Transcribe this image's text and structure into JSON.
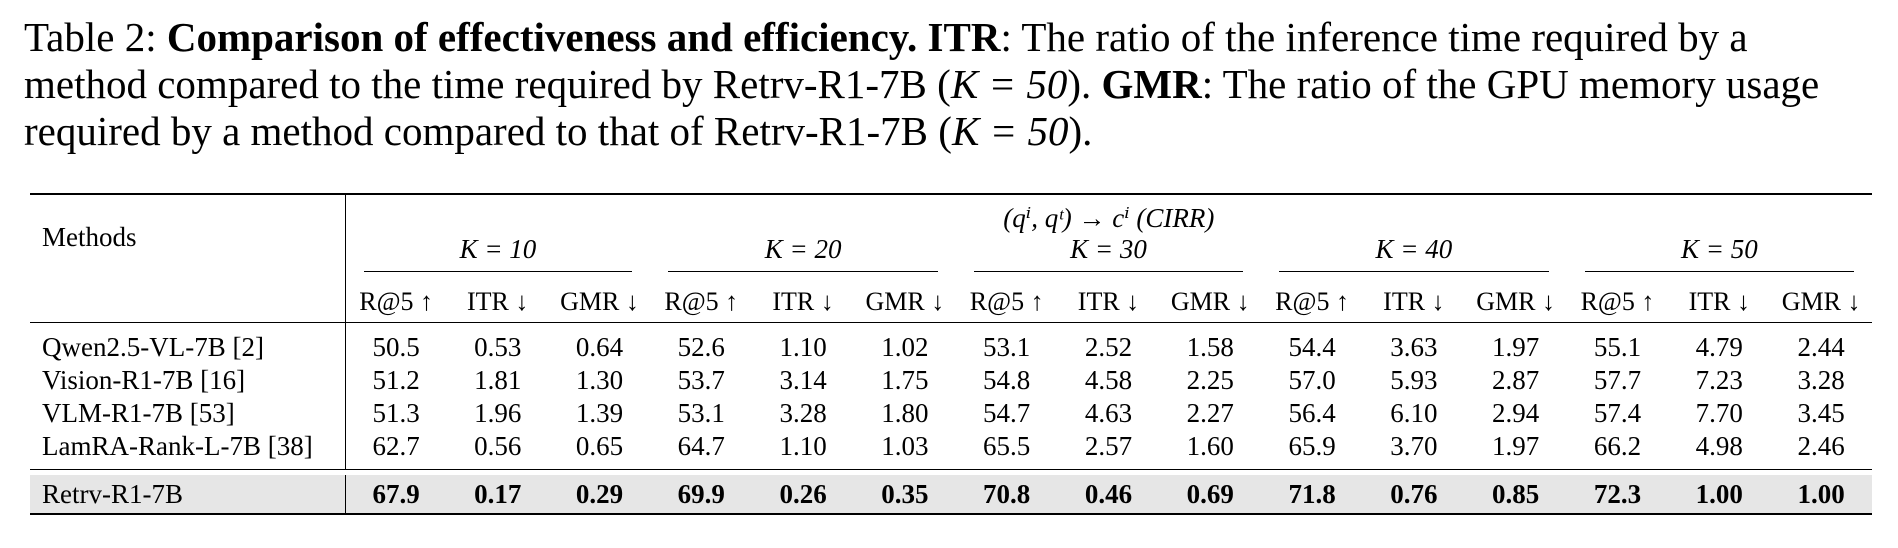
{
  "caption": {
    "label": "Table 2:",
    "title": "Comparison of effectiveness and efficiency.",
    "itr_term": "ITR",
    "itr_text_1": ": The ratio of the inference time required by a method compared to the time required by Retrv-R1-7B (",
    "itr_text_2": "). ",
    "gmr_term": "GMR",
    "gmr_text_1": ": The ratio of the GPU memory usage required by a method compared to that of Retrv-R1-7B (",
    "gmr_text_2": ").",
    "k_expr": "K = 50"
  },
  "table": {
    "methods_header": "Methods",
    "task_header": "(qⁱ, qᵗ) → cⁱ (CIRR)",
    "k_groups": [
      "K = 10",
      "K = 20",
      "K = 30",
      "K = 40",
      "K = 50"
    ],
    "metric_headers": [
      "R@5 ↑",
      "ITR ↓",
      "GMR ↓"
    ],
    "rows": [
      {
        "method": "Qwen2.5-VL-7B [2]",
        "values": [
          "50.5",
          "0.53",
          "0.64",
          "52.6",
          "1.10",
          "1.02",
          "53.1",
          "2.52",
          "1.58",
          "54.4",
          "3.63",
          "1.97",
          "55.1",
          "4.79",
          "2.44"
        ]
      },
      {
        "method": "Vision-R1-7B [16]",
        "values": [
          "51.2",
          "1.81",
          "1.30",
          "53.7",
          "3.14",
          "1.75",
          "54.8",
          "4.58",
          "2.25",
          "57.0",
          "5.93",
          "2.87",
          "57.7",
          "7.23",
          "3.28"
        ]
      },
      {
        "method": "VLM-R1-7B [53]",
        "values": [
          "51.3",
          "1.96",
          "1.39",
          "53.1",
          "3.28",
          "1.80",
          "54.7",
          "4.63",
          "2.27",
          "56.4",
          "6.10",
          "2.94",
          "57.4",
          "7.70",
          "3.45"
        ]
      },
      {
        "method": "LamRA-Rank-L-7B [38]",
        "values": [
          "62.7",
          "0.56",
          "0.65",
          "64.7",
          "1.10",
          "1.03",
          "65.5",
          "2.57",
          "1.60",
          "65.9",
          "3.70",
          "1.97",
          "66.2",
          "4.98",
          "2.46"
        ]
      }
    ],
    "ours": {
      "method": "Retrv-R1-7B",
      "values": [
        "67.9",
        "0.17",
        "0.29",
        "69.9",
        "0.26",
        "0.35",
        "70.8",
        "0.46",
        "0.69",
        "71.8",
        "0.76",
        "0.85",
        "72.3",
        "1.00",
        "1.00"
      ]
    }
  }
}
